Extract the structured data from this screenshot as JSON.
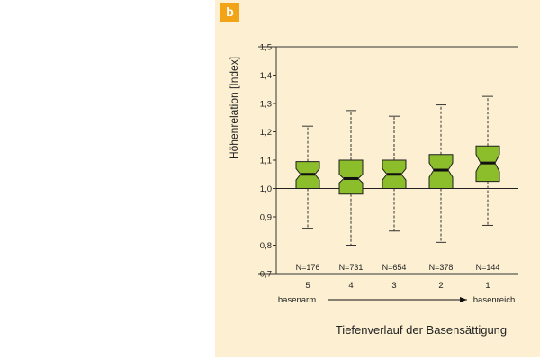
{
  "panel_label": "b",
  "chart_data": {
    "type": "box",
    "ylabel": "Höhenrelation [Index]",
    "xlabel": "Tiefenverlauf der Basensättigung",
    "ylim": [
      0.7,
      1.5
    ],
    "yticks": [
      0.7,
      0.8,
      0.9,
      1.0,
      1.1,
      1.2,
      1.3,
      1.4,
      1.5
    ],
    "ytick_labels": [
      "0,7",
      "0,8",
      "0,9",
      "1,0",
      "1,1",
      "1,2",
      "1,3",
      "1,4",
      "1,5"
    ],
    "reference_line": 1.0,
    "gradient_left_label": "basenarm",
    "gradient_right_label": "basenreich",
    "box_color": "#8cbd2b",
    "box_edge_color": "#1e1e1e",
    "panel_bg": "#fdf0d2",
    "badge_color": "#f3a416",
    "categories": [
      "5",
      "4",
      "3",
      "2",
      "1"
    ],
    "counts": [
      "N=176",
      "N=731",
      "N=654",
      "N=378",
      "N=144"
    ],
    "boxes": [
      {
        "whisker_low": 0.86,
        "q1": 1.0,
        "notch_low": 1.03,
        "median": 1.05,
        "notch_high": 1.07,
        "q3": 1.095,
        "whisker_high": 1.22
      },
      {
        "whisker_low": 0.8,
        "q1": 0.98,
        "notch_low": 1.02,
        "median": 1.035,
        "notch_high": 1.05,
        "q3": 1.1,
        "whisker_high": 1.275
      },
      {
        "whisker_low": 0.85,
        "q1": 1.0,
        "notch_low": 1.03,
        "median": 1.05,
        "notch_high": 1.07,
        "q3": 1.1,
        "whisker_high": 1.255
      },
      {
        "whisker_low": 0.81,
        "q1": 1.0,
        "notch_low": 1.04,
        "median": 1.065,
        "notch_high": 1.09,
        "q3": 1.12,
        "whisker_high": 1.295
      },
      {
        "whisker_low": 0.87,
        "q1": 1.025,
        "notch_low": 1.06,
        "median": 1.09,
        "notch_high": 1.12,
        "q3": 1.15,
        "whisker_high": 1.325
      }
    ]
  }
}
